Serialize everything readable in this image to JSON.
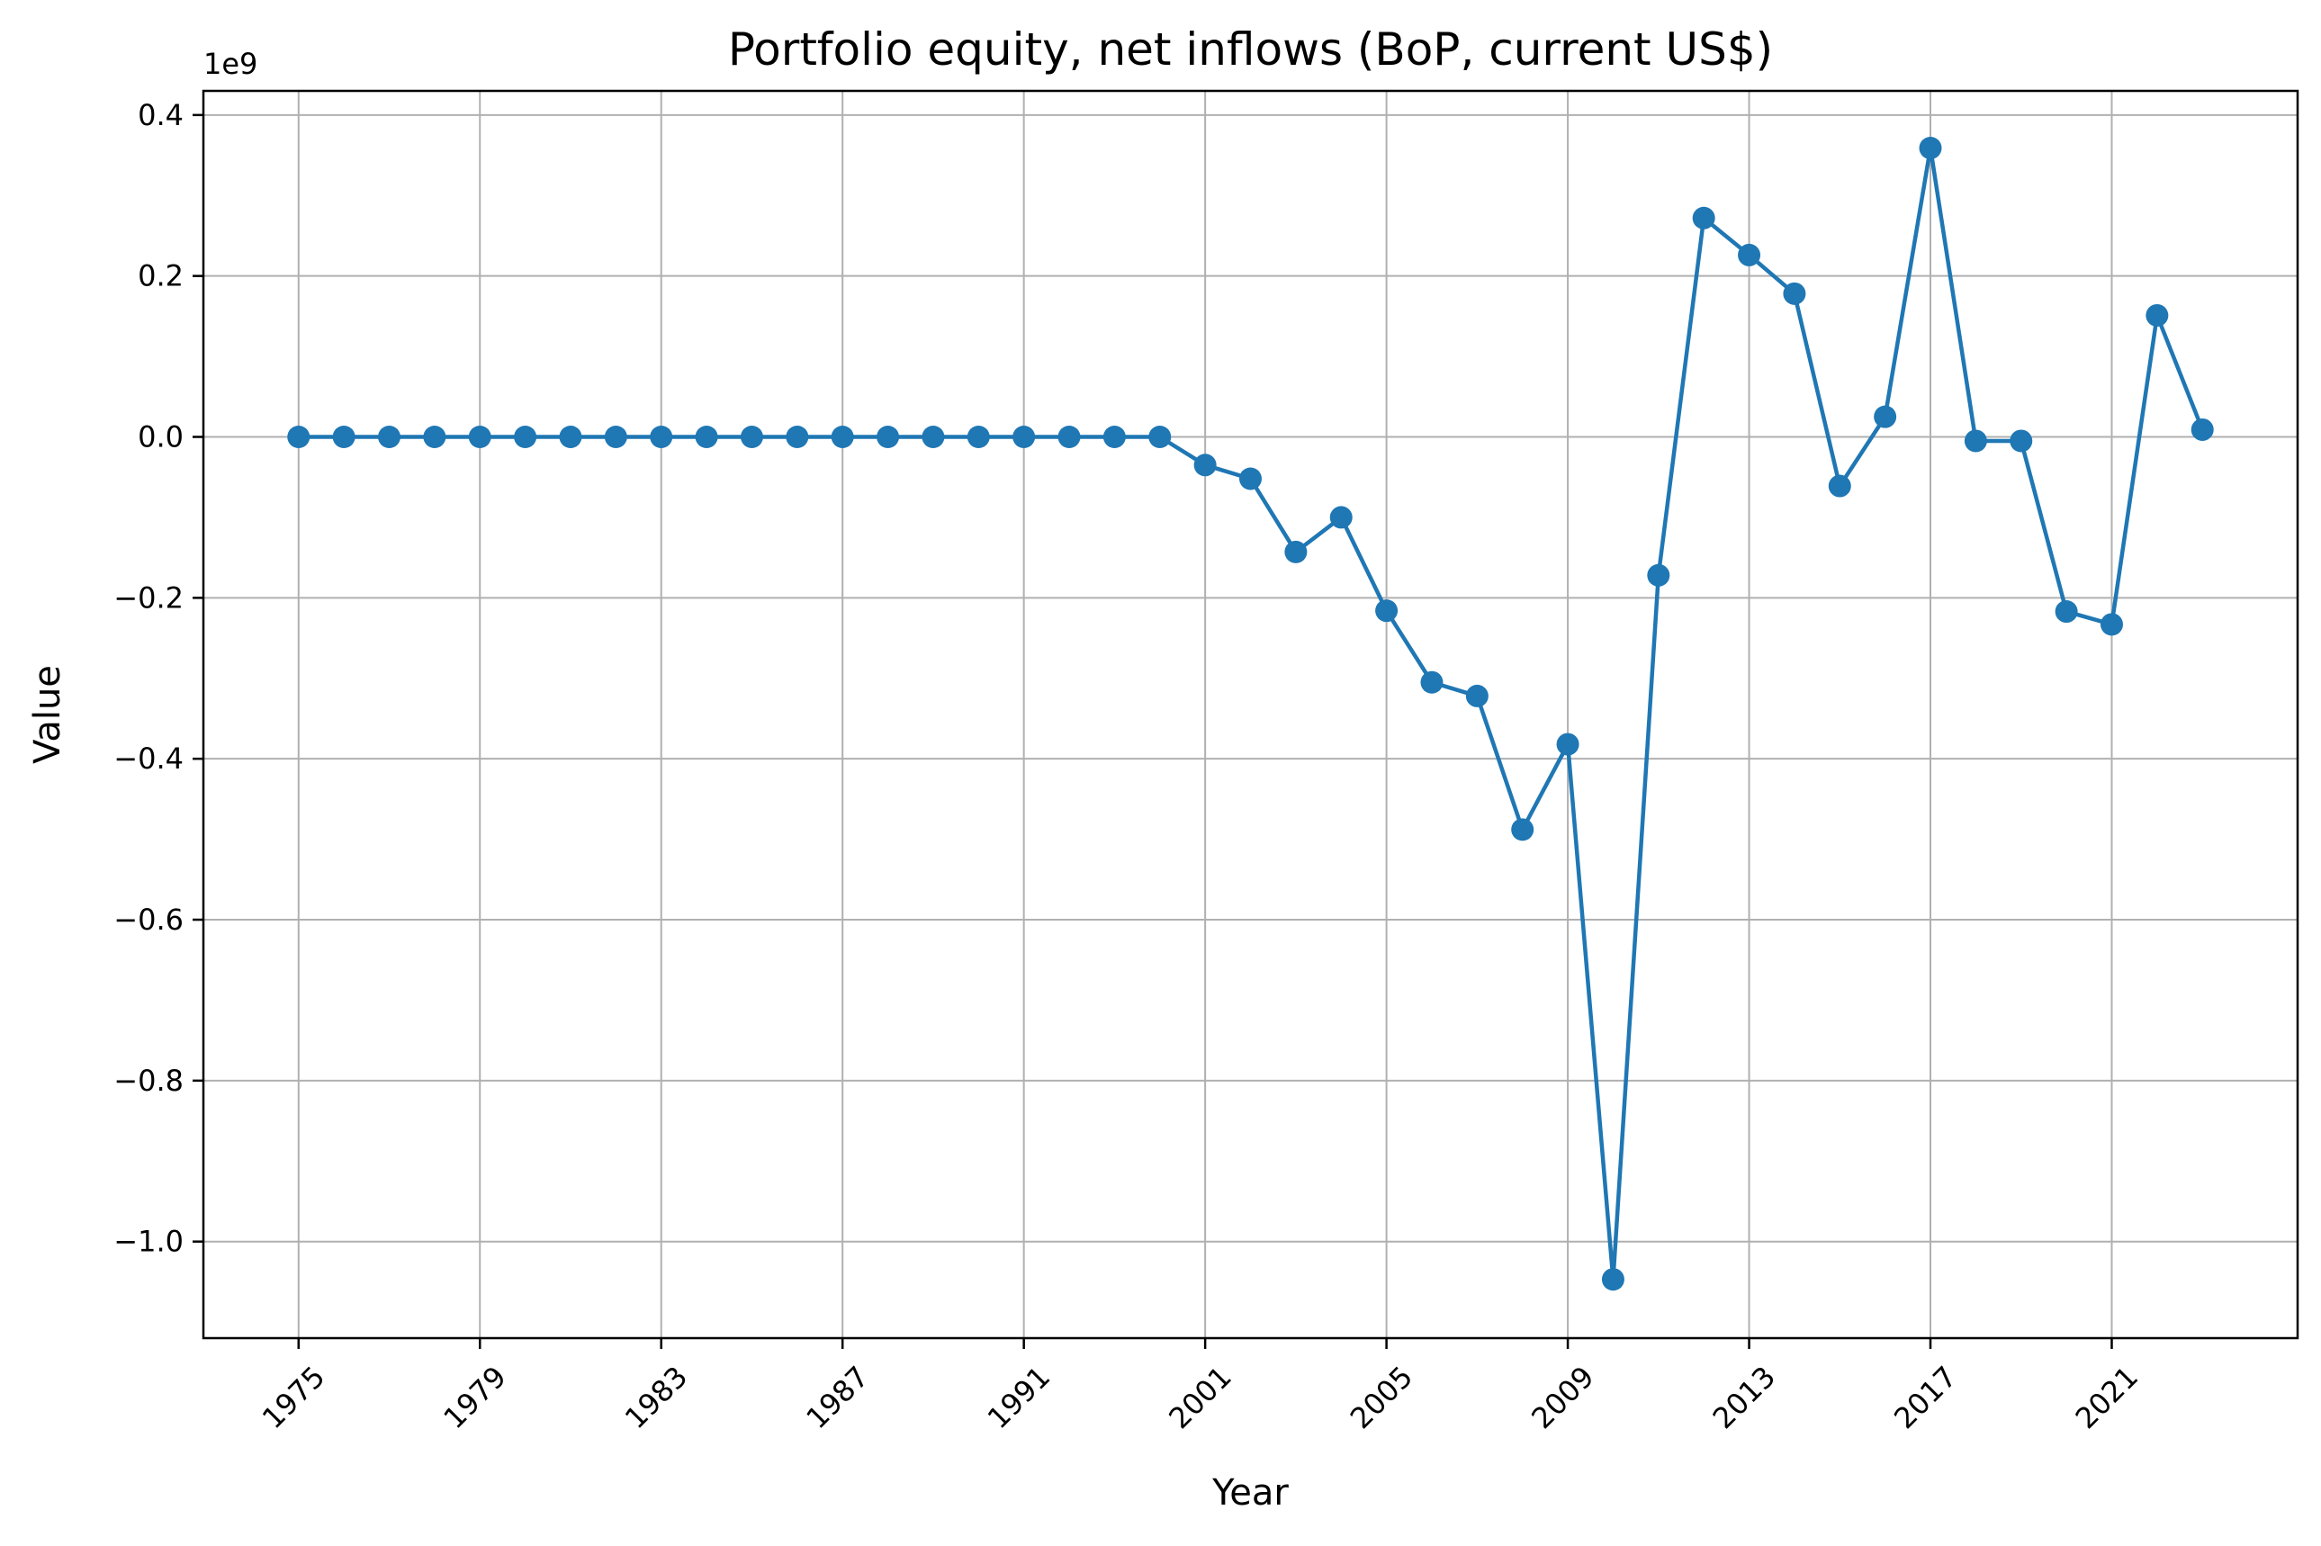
{
  "chart_data": {
    "type": "line",
    "title": "Portfolio equity, net inflows (BoP, current US$)",
    "xlabel": "Year",
    "ylabel": "Value",
    "y_offset_label": "1e9",
    "ylim": [
      -1.12,
      0.43
    ],
    "grid": true,
    "colors": {
      "series": "#1f77b4",
      "grid": "#b0b0b0",
      "axes": "#000000"
    },
    "x_tick_labels": [
      "1975",
      "1979",
      "1983",
      "1987",
      "1991",
      "2001",
      "2005",
      "2009",
      "2013",
      "2017",
      "2021"
    ],
    "y_ticks": [
      -1.0,
      -0.8,
      -0.6,
      -0.4,
      -0.2,
      0.0,
      0.2,
      0.4
    ],
    "y_tick_labels": [
      "−1.0",
      "−0.8",
      "−0.6",
      "−0.4",
      "−0.2",
      "0.0",
      "0.2",
      "0.4"
    ],
    "series": [
      {
        "x": [
          "1975",
          "1976",
          "1977",
          "1978",
          "1979",
          "1980",
          "1981",
          "1982",
          "1983",
          "1984",
          "1985",
          "1986",
          "1987",
          "1988",
          "1989",
          "1990",
          "1991",
          "1992",
          "1993",
          "2000",
          "2001",
          "2002",
          "2003",
          "2004",
          "2005",
          "2006",
          "2007",
          "2008",
          "2009",
          "2010",
          "2011",
          "2012",
          "2013",
          "2014",
          "2015",
          "2016",
          "2017",
          "2018",
          "2019",
          "2020",
          "2021",
          "2022",
          "2023"
        ],
        "values": [
          0.0,
          0.0,
          0.0,
          0.0,
          0.0,
          0.0,
          0.0,
          0.0,
          0.0,
          0.0,
          0.0,
          0.0,
          0.0,
          0.0,
          0.0,
          0.0,
          0.0,
          0.0,
          0.0,
          0.0,
          -0.035,
          -0.052,
          -0.143,
          -0.1,
          -0.216,
          -0.305,
          -0.322,
          -0.488,
          -0.382,
          -1.047,
          -0.172,
          0.272,
          0.226,
          0.178,
          -0.061,
          0.025,
          0.359,
          -0.005,
          -0.005,
          -0.217,
          -0.233,
          0.151,
          0.009
        ]
      }
    ]
  }
}
